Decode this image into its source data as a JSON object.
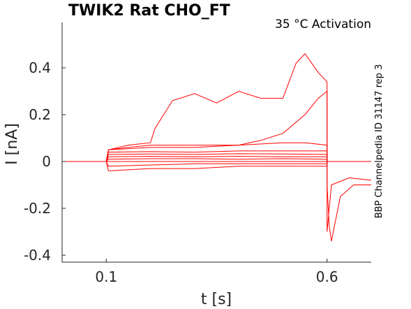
{
  "chart_data": {
    "type": "line",
    "title": "TWIK2  Rat  CHO_FT",
    "subtitle": "35 °C  Activation",
    "side_label": "BBP Channelpedia ID 31147 rep 3",
    "xlabel": "t [s]",
    "ylabel": "I [nA]",
    "xlim": [
      0.0,
      0.7
    ],
    "ylim": [
      -0.42,
      0.6
    ],
    "x_ticks": [
      0.1,
      0.6
    ],
    "x_tick_labels": [
      "0.1",
      "0.6"
    ],
    "y_ticks": [
      0.4,
      0.2,
      0,
      -0.2,
      -0.4
    ],
    "y_tick_labels": [
      "0.4",
      "0.2",
      "0",
      "-0.2",
      "-0.4"
    ],
    "grid": false,
    "series_color": "#ff0000",
    "series": [
      {
        "x": [
          0.0,
          0.1,
          0.105,
          0.2,
          0.3,
          0.4,
          0.5,
          0.6,
          0.6,
          0.61,
          0.65,
          0.7
        ],
        "values": [
          0.0,
          0.0,
          -0.04,
          -0.03,
          -0.03,
          -0.02,
          -0.02,
          -0.02,
          0.0,
          0.0,
          0.0,
          0.0
        ]
      },
      {
        "x": [
          0.0,
          0.1,
          0.105,
          0.2,
          0.3,
          0.4,
          0.5,
          0.6,
          0.6,
          0.61,
          0.65,
          0.7
        ],
        "values": [
          0.0,
          0.0,
          -0.02,
          -0.015,
          -0.01,
          -0.01,
          -0.01,
          -0.01,
          0.0,
          0.0,
          0.0,
          0.0
        ]
      },
      {
        "x": [
          0.0,
          0.1,
          0.105,
          0.2,
          0.3,
          0.4,
          0.5,
          0.6,
          0.6,
          0.61,
          0.65,
          0.7
        ],
        "values": [
          0.0,
          0.0,
          0.0,
          0.0,
          0.0,
          0.0,
          0.0,
          0.0,
          0.0,
          0.0,
          0.0,
          0.0
        ]
      },
      {
        "x": [
          0.0,
          0.1,
          0.105,
          0.2,
          0.3,
          0.4,
          0.5,
          0.6,
          0.6,
          0.61,
          0.65,
          0.7
        ],
        "values": [
          0.0,
          0.0,
          0.01,
          0.012,
          0.012,
          0.01,
          0.012,
          0.01,
          0.0,
          0.0,
          0.0,
          0.0
        ]
      },
      {
        "x": [
          0.0,
          0.1,
          0.105,
          0.2,
          0.3,
          0.4,
          0.5,
          0.6,
          0.6,
          0.61,
          0.65,
          0.7
        ],
        "values": [
          0.0,
          0.0,
          0.02,
          0.022,
          0.02,
          0.022,
          0.02,
          0.02,
          0.0,
          0.0,
          0.0,
          0.0
        ]
      },
      {
        "x": [
          0.0,
          0.1,
          0.105,
          0.2,
          0.3,
          0.4,
          0.5,
          0.6,
          0.6,
          0.61,
          0.65,
          0.7
        ],
        "values": [
          0.0,
          0.0,
          0.03,
          0.032,
          0.03,
          0.033,
          0.032,
          0.03,
          0.0,
          0.0,
          0.0,
          0.0
        ]
      },
      {
        "x": [
          0.0,
          0.1,
          0.105,
          0.2,
          0.3,
          0.4,
          0.5,
          0.6,
          0.6,
          0.61,
          0.65,
          0.7
        ],
        "values": [
          0.0,
          0.0,
          0.04,
          0.042,
          0.04,
          0.045,
          0.045,
          0.045,
          0.0,
          0.0,
          0.0,
          0.0
        ]
      },
      {
        "x": [
          0.0,
          0.1,
          0.105,
          0.15,
          0.2,
          0.3,
          0.4,
          0.5,
          0.55,
          0.6,
          0.6,
          0.61,
          0.65,
          0.7
        ],
        "values": [
          0.0,
          0.0,
          0.05,
          0.06,
          0.07,
          0.07,
          0.07,
          0.08,
          0.08,
          0.07,
          0.0,
          0.0,
          0.0,
          0.0
        ]
      },
      {
        "x": [
          0.0,
          0.1,
          0.105,
          0.2,
          0.3,
          0.4,
          0.45,
          0.5,
          0.55,
          0.58,
          0.6,
          0.6,
          0.61,
          0.65,
          0.7
        ],
        "values": [
          0.0,
          0.0,
          0.05,
          0.06,
          0.06,
          0.07,
          0.09,
          0.12,
          0.2,
          0.27,
          0.3,
          -0.3,
          -0.1,
          -0.07,
          -0.08
        ]
      },
      {
        "x": [
          0.0,
          0.1,
          0.105,
          0.15,
          0.2,
          0.21,
          0.25,
          0.3,
          0.35,
          0.4,
          0.45,
          0.5,
          0.53,
          0.55,
          0.58,
          0.6,
          0.6,
          0.605,
          0.61,
          0.63,
          0.66,
          0.7
        ],
        "values": [
          0.0,
          0.0,
          0.05,
          0.07,
          0.08,
          0.14,
          0.26,
          0.29,
          0.25,
          0.3,
          0.27,
          0.27,
          0.42,
          0.46,
          0.38,
          0.34,
          -0.1,
          -0.28,
          -0.34,
          -0.15,
          -0.1,
          -0.1
        ]
      }
    ]
  }
}
